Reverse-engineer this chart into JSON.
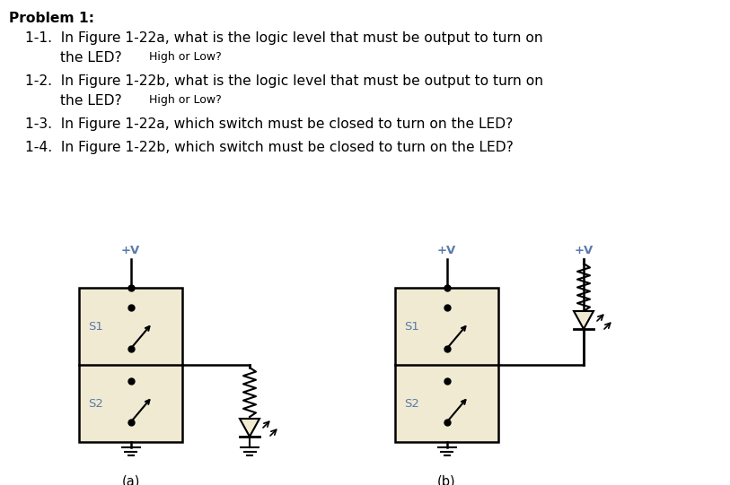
{
  "bg_color": "#ffffff",
  "box_fill": "#f0ead2",
  "box_edge": "#000000",
  "text_color": "#000000",
  "label_color": "#5a7aaa",
  "fig_labels": [
    "(a)",
    "(b)"
  ],
  "title": "Problem 1:",
  "q1a": "1-1.  In Figure 1-22a, what is the logic level that must be output to turn on",
  "q1b": "        the LED?",
  "q1c": "  High or Low?",
  "q2a": "1-2.  In Figure 1-22b, what is the logic level that must be output to turn on",
  "q2b": "        the LED?",
  "q2c": "  High or Low?",
  "q3": "1-3.  In Figure 1-22a, which switch must be closed to turn on the LED?",
  "q4": "1-4.  In Figure 1-22b, which switch must be closed to turn on the LED?",
  "pv": "+V",
  "s1": "S1",
  "s2": "S2"
}
